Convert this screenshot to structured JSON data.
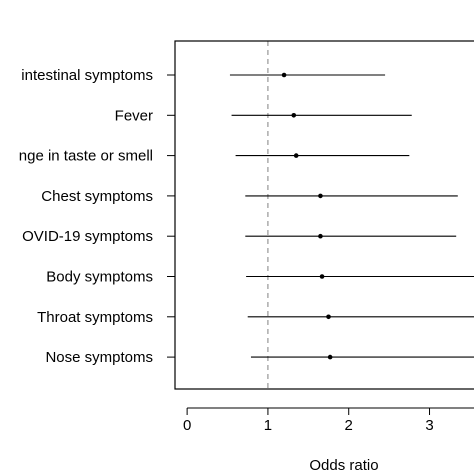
{
  "chart_data": {
    "type": "forest",
    "xlabel": "Odds ratio",
    "ylabel": "",
    "title": "",
    "xlim": [
      -0.15,
      3.6
    ],
    "xticks": [
      0,
      1,
      2,
      3
    ],
    "reference_line": 1,
    "categories": [
      "intestinal symptoms",
      "Fever",
      "nge in taste or smell",
      "Chest symptoms",
      "OVID-19 symptoms",
      "Body symptoms",
      "Throat symptoms",
      "Nose symptoms"
    ],
    "estimates": [
      1.2,
      1.32,
      1.35,
      1.65,
      1.65,
      1.67,
      1.75,
      1.77
    ],
    "lower": [
      0.53,
      0.55,
      0.6,
      0.72,
      0.72,
      0.73,
      0.75,
      0.79
    ],
    "upper": [
      2.45,
      2.78,
      2.75,
      3.35,
      3.33,
      3.6,
      3.6,
      3.6
    ],
    "colors": {
      "point": "#000000",
      "ci": "#000000",
      "reference": "#808080",
      "frame": "#000000"
    }
  }
}
